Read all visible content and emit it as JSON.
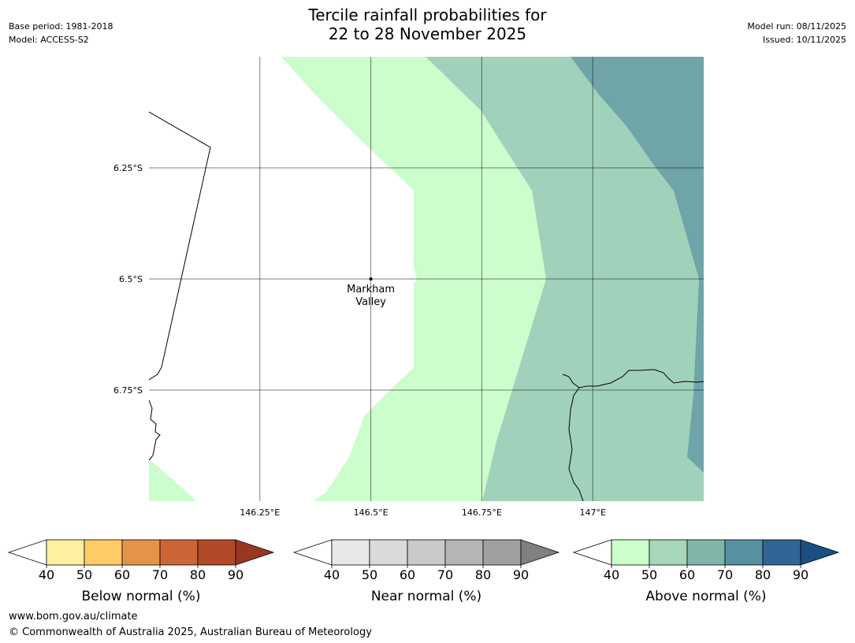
{
  "header": {
    "title_line1": "Tercile rainfall probabilities for",
    "title_line2": "22 to 28 November 2025",
    "base_period": "Base period: 1981-2018",
    "model": "Model: ACCESS-S2",
    "model_run": "Model run: 08/11/2025",
    "issued": "Issued: 10/11/2025"
  },
  "map": {
    "lat_labels": [
      "6.25°S",
      "6.5°S",
      "6.75°S"
    ],
    "lon_labels": [
      "146.25°E",
      "146.5°E",
      "146.75°E",
      "147°E"
    ],
    "place": {
      "name_line1": "Markham",
      "name_line2": "Valley",
      "lat": -6.5,
      "lon": 146.5
    },
    "extent": {
      "lon_min": 146.0,
      "lon_max": 147.25,
      "lat_top": -6.0,
      "lat_bottom": -7.0
    }
  },
  "colorbars": [
    {
      "label": "Below normal (%)",
      "ticks": [
        "40",
        "50",
        "60",
        "70",
        "80",
        "90"
      ],
      "colors": [
        "#fff0a0",
        "#ffcb66",
        "#e4934a",
        "#cc6536",
        "#b24827",
        "#98361f"
      ]
    },
    {
      "label": "Near normal (%)",
      "ticks": [
        "40",
        "50",
        "60",
        "70",
        "80",
        "90"
      ],
      "colors": [
        "#e8e8e8",
        "#dadada",
        "#c9c9c9",
        "#b5b5b5",
        "#a0a0a0",
        "#808080"
      ]
    },
    {
      "label": "Above normal (%)",
      "ticks": [
        "40",
        "50",
        "60",
        "70",
        "80",
        "90"
      ],
      "colors": [
        "#ccfdcc",
        "#a5d7b8",
        "#80b5aa",
        "#5890a0",
        "#326596",
        "#1a4f82"
      ]
    }
  ],
  "footer": {
    "url": "www.bom.gov.au/climate",
    "copyright": "© Commonwealth of Australia 2025, Australian Bureau of Meteorology"
  }
}
